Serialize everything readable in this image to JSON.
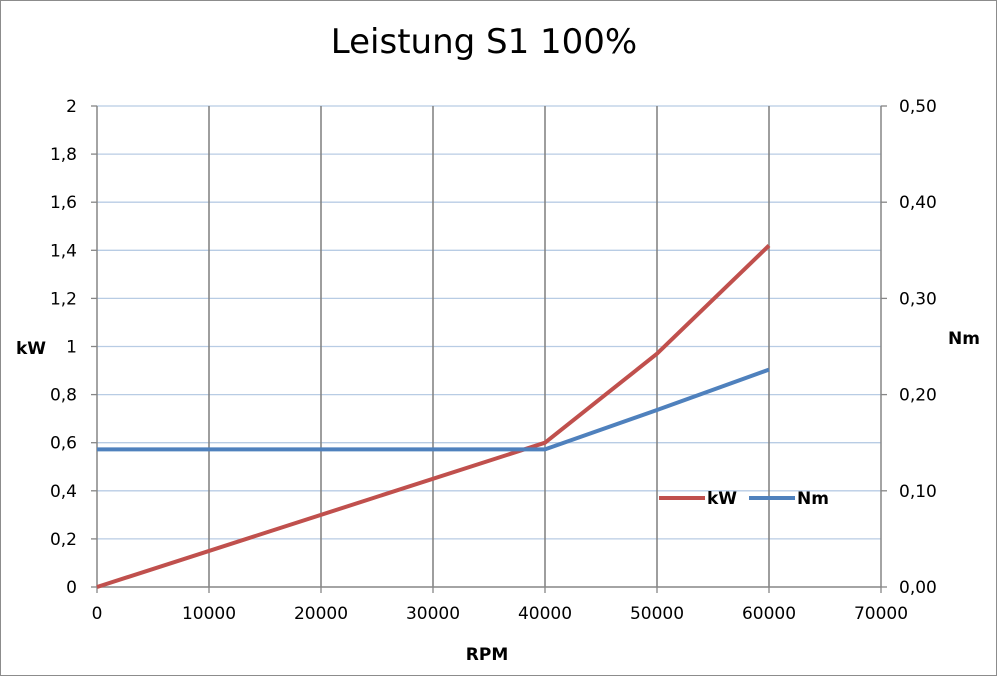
{
  "chart_data": {
    "type": "line",
    "title": "Leistung S1 100%",
    "xlabel": "RPM",
    "ylabel": "kW",
    "y2label": "Nm",
    "xlim": [
      0,
      70000
    ],
    "ylim": [
      0,
      2
    ],
    "y2lim": [
      0,
      0.5
    ],
    "x_ticks": [
      0,
      10000,
      20000,
      30000,
      40000,
      50000,
      60000,
      70000
    ],
    "x_tick_labels": [
      "0",
      "10000",
      "20000",
      "30000",
      "40000",
      "50000",
      "60000",
      "70000"
    ],
    "y_ticks": [
      0,
      0.2,
      0.4,
      0.6,
      0.8,
      1,
      1.2,
      1.4,
      1.6,
      1.8,
      2
    ],
    "y_tick_labels": [
      "0",
      "0,2",
      "0,4",
      "0,6",
      "0,8",
      "1",
      "1,2",
      "1,4",
      "1,6",
      "1,8",
      "2"
    ],
    "y2_ticks": [
      0,
      0.1,
      0.2,
      0.3,
      0.4,
      0.5
    ],
    "y2_tick_labels": [
      "0,00",
      "0,10",
      "0,20",
      "0,30",
      "0,40",
      "0,50"
    ],
    "grid": true,
    "legend_position": "bottom-right",
    "series": [
      {
        "name": "kW",
        "axis": "left",
        "color": "#c0504d",
        "x": [
          0,
          40000,
          50000,
          60000
        ],
        "y": [
          0,
          0.6,
          0.97,
          1.42
        ]
      },
      {
        "name": "Nm",
        "axis": "right",
        "color": "#4f81bd",
        "x": [
          0,
          40000,
          50000,
          60000
        ],
        "y": [
          0.143,
          0.143,
          0.184,
          0.226
        ]
      }
    ]
  }
}
